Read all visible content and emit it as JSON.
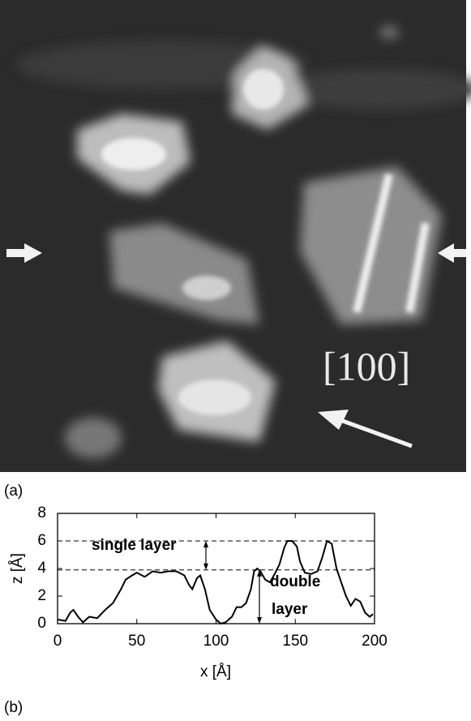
{
  "panel_a": {
    "label": "(a)",
    "direction_label": "[100]"
  },
  "panel_b": {
    "label": "(b)"
  },
  "chart_data": {
    "type": "line",
    "xlabel": "x [Å]",
    "ylabel": "z [Å]",
    "x": [
      0,
      5,
      8,
      10,
      13,
      16,
      20,
      25,
      30,
      35,
      40,
      43,
      47,
      50,
      55,
      60,
      65,
      70,
      75,
      80,
      83,
      85,
      88,
      90,
      93,
      96,
      100,
      103,
      106,
      110,
      113,
      116,
      119,
      122,
      124,
      126,
      128,
      131,
      134,
      137,
      140,
      143,
      145,
      148,
      151,
      153,
      156,
      160,
      164,
      167,
      170,
      173,
      176,
      179,
      182,
      185,
      188,
      191,
      194,
      197,
      199
    ],
    "values": [
      0.3,
      0.2,
      0.8,
      1.0,
      0.5,
      0.1,
      0.5,
      0.4,
      1.0,
      1.5,
      2.5,
      3.2,
      3.5,
      3.7,
      3.4,
      3.8,
      3.7,
      3.8,
      3.8,
      3.5,
      2.8,
      2.5,
      3.3,
      3.5,
      2.5,
      1.0,
      0.3,
      0.0,
      0.1,
      0.5,
      1.2,
      1.2,
      1.5,
      2.5,
      3.8,
      4.0,
      3.8,
      3.2,
      3.0,
      3.6,
      4.3,
      5.5,
      6.0,
      6.0,
      5.6,
      4.5,
      3.7,
      3.6,
      3.8,
      4.8,
      6.0,
      5.8,
      4.0,
      3.0,
      2.0,
      1.3,
      1.8,
      1.6,
      0.8,
      0.5,
      0.7
    ],
    "color": "#000000",
    "xlim": [
      0,
      200
    ],
    "xticks": [
      0,
      50,
      100,
      150,
      200
    ],
    "ylim": [
      0,
      8
    ],
    "yticks": [
      0,
      2,
      4,
      6,
      8
    ],
    "reference_lines": [
      6,
      3.9
    ],
    "annotations": [
      "single layer",
      "double",
      "layer"
    ]
  }
}
